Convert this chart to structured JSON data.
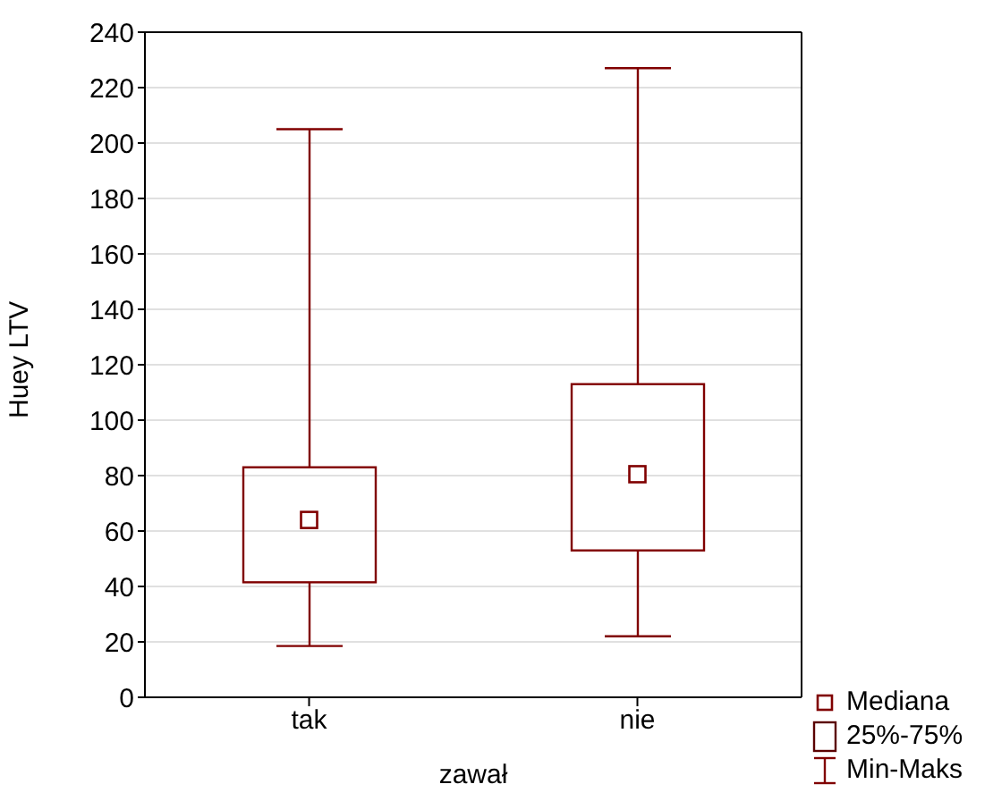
{
  "chart_data": {
    "type": "box",
    "categories": [
      "tak",
      "nie"
    ],
    "xlabel": "zawał",
    "ylabel": "Huey LTV",
    "ylim": [
      0,
      240
    ],
    "yticks": [
      0,
      20,
      40,
      60,
      80,
      100,
      120,
      140,
      160,
      180,
      200,
      220,
      240
    ],
    "grid": "y",
    "series": [
      {
        "color": "#800000",
        "boxes": [
          {
            "low": 18.5,
            "q1": 41.5,
            "median": 64,
            "q3": 83,
            "high": 205
          },
          {
            "low": 22,
            "q1": 53,
            "median": 80.5,
            "q3": 113,
            "high": 227
          }
        ]
      }
    ],
    "annotations": [
      "Mediana",
      "25%-75%",
      "Min-Maks"
    ]
  }
}
